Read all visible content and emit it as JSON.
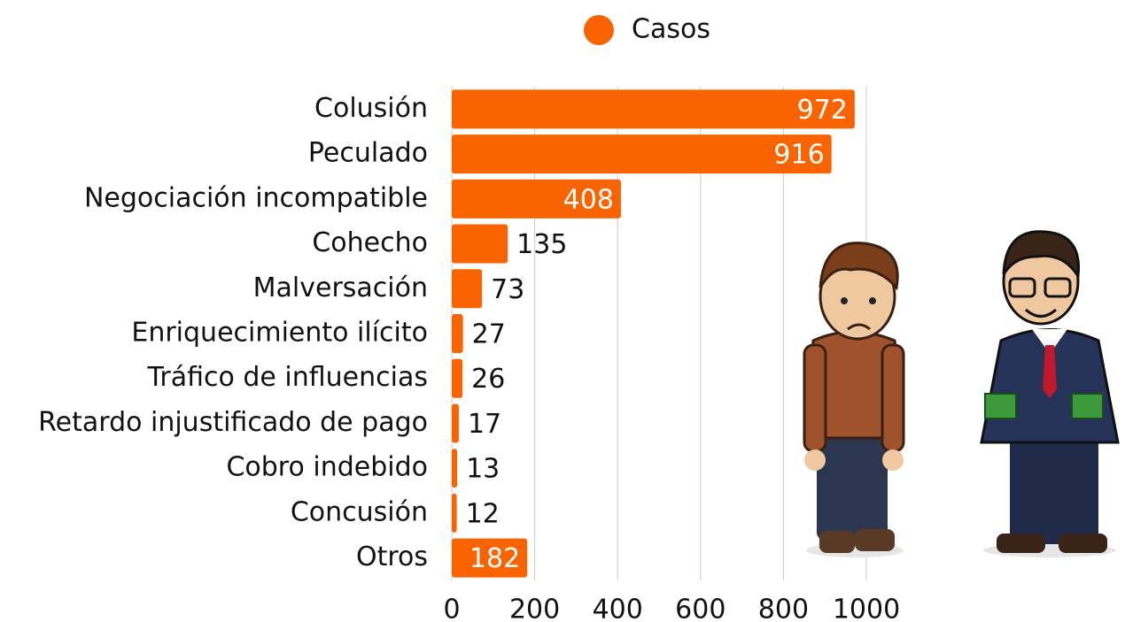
{
  "chart_data": {
    "type": "bar",
    "orientation": "horizontal",
    "categories": [
      "Colusión",
      "Peculado",
      "Negociación incompatible",
      "Cohecho",
      "Malversación",
      "Enriquecimiento ilícito",
      "Tráfico de influencias",
      "Retardo injustificado de pago",
      "Cobro indebido",
      "Concusión",
      "Otros"
    ],
    "series": [
      {
        "name": "Casos",
        "color": "#fa6400",
        "values": [
          972,
          916,
          408,
          135,
          73,
          27,
          26,
          17,
          13,
          12,
          182
        ]
      }
    ],
    "xlim": [
      0,
      1000
    ],
    "xticks": [
      0,
      200,
      400,
      600,
      800,
      1000
    ],
    "grid": true,
    "legend": "top"
  }
}
